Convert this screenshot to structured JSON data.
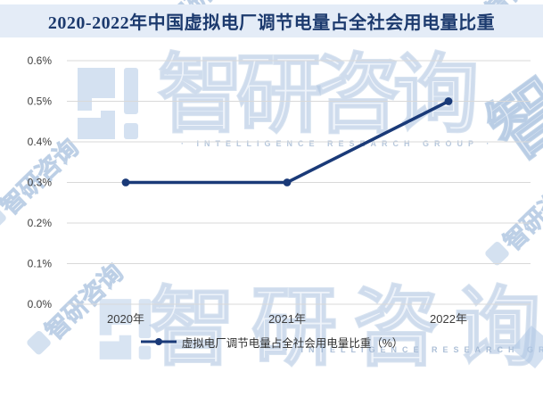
{
  "title": "2020-2022年中国虚拟电厂调节电量占全社会用电量比重",
  "chart_data": {
    "type": "line",
    "title": "2020-2022年中国虚拟电厂调节电量占全社会用电量比重",
    "categories": [
      "2020年",
      "2021年",
      "2022年"
    ],
    "series": [
      {
        "name": "虚拟电厂调节电量占全社会用电量比重（%）",
        "values": [
          0.3,
          0.3,
          0.5
        ],
        "color": "#1a3a78"
      }
    ],
    "xlabel": "",
    "ylabel": "",
    "ylim": [
      0,
      0.6
    ],
    "yticks": [
      "0.0%",
      "0.1%",
      "0.2%",
      "0.3%",
      "0.4%",
      "0.5%",
      "0.6%"
    ],
    "grid": true,
    "legend_position": "bottom"
  },
  "watermark": {
    "brand": "智研咨询",
    "subtitle": "INTELLIGENCE RESEARCH GROUP"
  },
  "colors": {
    "banner_bg": "#e4ecf7",
    "title_text": "#1c3a6e",
    "line": "#1a3a78",
    "gridline": "#d9d9d9",
    "axis_text": "#3d3d3d",
    "watermark_blue": "#b9cde6"
  }
}
